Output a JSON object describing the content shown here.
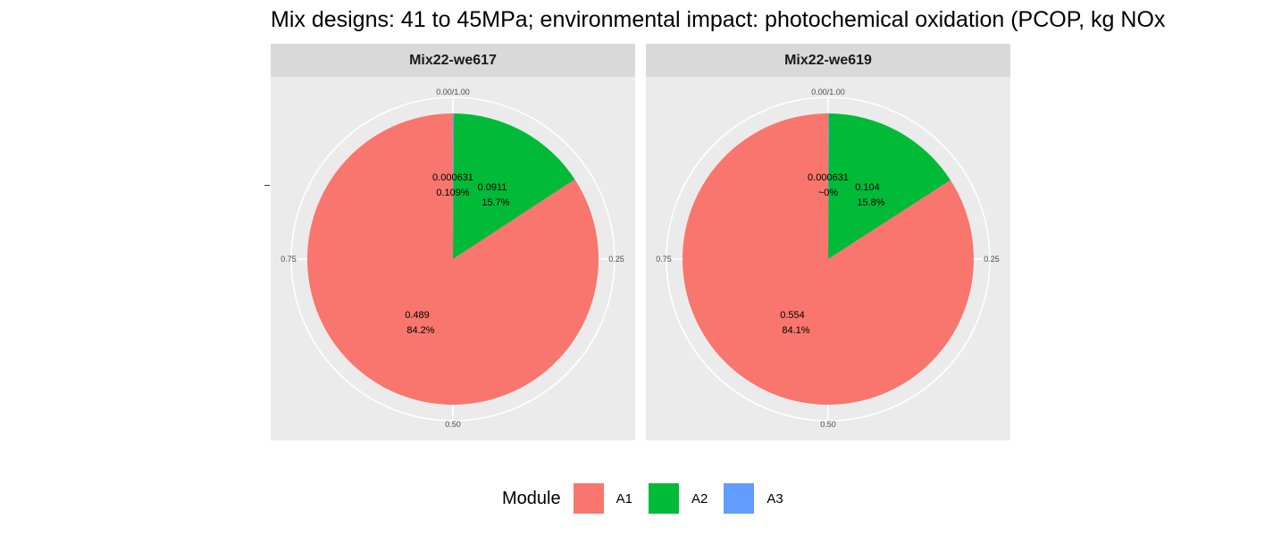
{
  "chart_data": {
    "type": "pie",
    "title": "Mix designs: 41 to 45MPa; environmental impact: photochemical oxidation (PCOP, kg NOx",
    "theta_ticks": [
      "0.00/1.00",
      "0.25",
      "0.50",
      "0.75"
    ],
    "legend": {
      "title": "Module",
      "position": "bottom",
      "entries": [
        {
          "label": "A1",
          "color": "#F8766D"
        },
        {
          "label": "A2",
          "color": "#00BA38"
        },
        {
          "label": "A3",
          "color": "#619CFF"
        }
      ]
    },
    "panels": [
      {
        "name": "Mix22-we617",
        "slices": [
          {
            "module": "A3",
            "value": 0.000631,
            "percent": "0.109%",
            "value_label": "0.000631"
          },
          {
            "module": "A2",
            "value": 0.0911,
            "percent": "15.7%",
            "value_label": "0.0911"
          },
          {
            "module": "A1",
            "value": 0.489,
            "percent": "84.2%",
            "value_label": "0.489"
          }
        ]
      },
      {
        "name": "Mix22-we619",
        "slices": [
          {
            "module": "A3",
            "value": 0.000631,
            "percent": "~0%",
            "value_label": "0.000631"
          },
          {
            "module": "A2",
            "value": 0.104,
            "percent": "15.8%",
            "value_label": "0.104"
          },
          {
            "module": "A1",
            "value": 0.554,
            "percent": "84.1%",
            "value_label": "0.554"
          }
        ]
      }
    ]
  }
}
